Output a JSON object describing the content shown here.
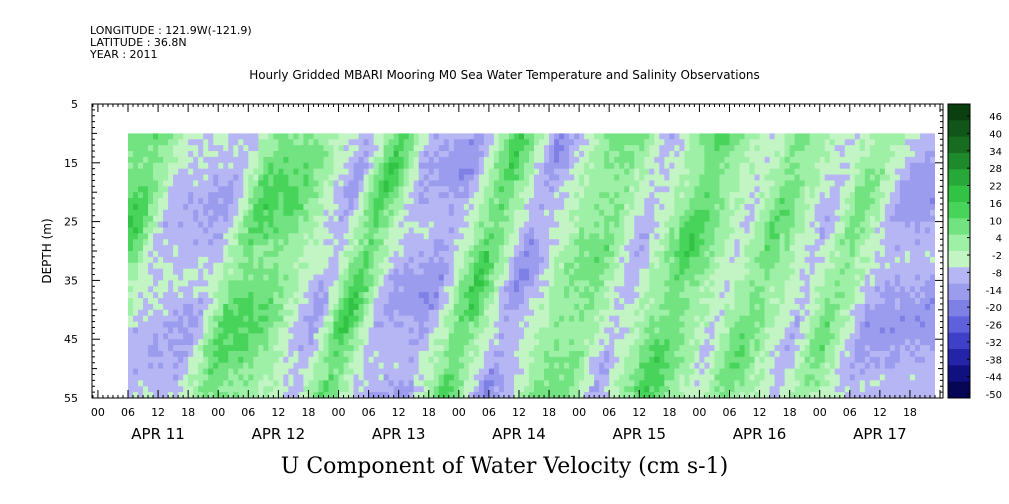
{
  "header": {
    "longitude": "LONGITUDE : 121.9W(-121.9)",
    "latitude": "LATITUDE : 36.8N",
    "year": "YEAR : 2011"
  },
  "chart_data": {
    "type": "heatmap",
    "title": "Hourly Gridded MBARI Mooring M0 Sea Water Temperature and Salinity Observations",
    "xlabel": "",
    "ylabel": "DEPTH (m)",
    "bottom_title": "U Component of Water Velocity (cm s-1)",
    "ylim": [
      5,
      55
    ],
    "y_inverted": true,
    "y_ticks": [
      "5",
      "15",
      "25",
      "35",
      "45",
      "55"
    ],
    "hour_ticks": [
      "00",
      "06",
      "12",
      "18"
    ],
    "days": [
      "APR 11",
      "APR 12",
      "APR 13",
      "APR 14",
      "APR 15",
      "APR 16",
      "APR 17"
    ],
    "data_start_hour": 6,
    "data_end_hour": 167,
    "depth_range": [
      10,
      55
    ],
    "colorbar": {
      "labels": [
        "46",
        "40",
        "34",
        "28",
        "22",
        "16",
        "10",
        "4",
        "-2",
        "-8",
        "-14",
        "-20",
        "-26",
        "-32",
        "-38",
        "-44",
        "-50"
      ],
      "colors": [
        "#0c3f10",
        "#11551a",
        "#186c22",
        "#1f8a2c",
        "#28a838",
        "#32c244",
        "#48d35a",
        "#73e382",
        "#9ef0a6",
        "#c2f4c4",
        "#b6b6f4",
        "#9c9cee",
        "#7f80e6",
        "#5f60dc",
        "#3f40c8",
        "#2424a8",
        "#101080",
        "#060654"
      ]
    },
    "series": [
      {
        "name": "u_velocity",
        "x_hours": [
          6,
          12,
          18,
          30,
          36,
          44,
          54,
          60,
          66,
          76,
          84,
          92,
          102,
          108,
          114,
          124,
          134,
          140,
          150,
          156,
          164
        ],
        "values": [
          14,
          18,
          -8,
          -12,
          16,
          12,
          -14,
          22,
          -10,
          -16,
          20,
          -18,
          8,
          10,
          -12,
          18,
          -6,
          14,
          -10,
          12,
          -14
        ]
      }
    ]
  }
}
